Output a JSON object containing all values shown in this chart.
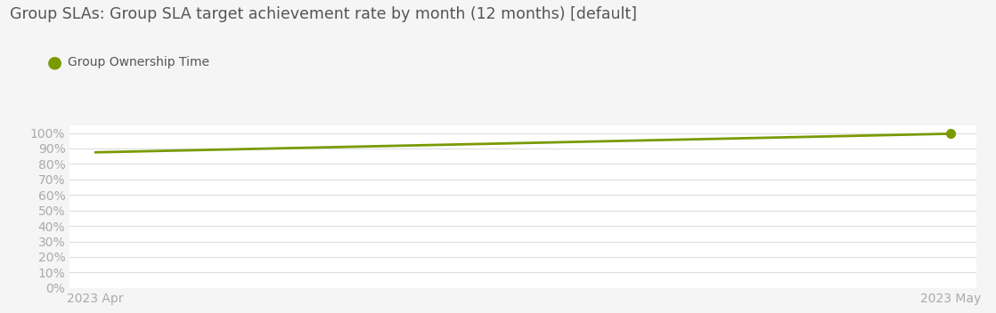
{
  "title": "Group SLAs: Group SLA target achievement rate by month (12 months) [default]",
  "legend_label": "Group Ownership Time",
  "line_color": "#7a9a01",
  "background_color": "#f5f5f5",
  "plot_bg_color": "#ffffff",
  "x_values": [
    0,
    1
  ],
  "y_values": [
    0.875,
    0.995
  ],
  "x_tick_labels": [
    "2023 Apr",
    "2023 May"
  ],
  "y_ticks": [
    0.0,
    0.1,
    0.2,
    0.3,
    0.4,
    0.5,
    0.6,
    0.7,
    0.8,
    0.9,
    1.0
  ],
  "y_tick_labels": [
    "0%",
    "10%",
    "20%",
    "30%",
    "40%",
    "50%",
    "60%",
    "70%",
    "80%",
    "90%",
    "100%"
  ],
  "ylim": [
    0,
    1.05
  ],
  "xlim": [
    -0.03,
    1.03
  ],
  "grid_color": "#dddddd",
  "title_color": "#555555",
  "tick_color": "#aaaaaa",
  "legend_color": "#555555",
  "title_fontsize": 12.5,
  "legend_fontsize": 10,
  "tick_fontsize": 10,
  "line_width": 2.0,
  "marker_size": 7,
  "dot_marker_size": 10
}
